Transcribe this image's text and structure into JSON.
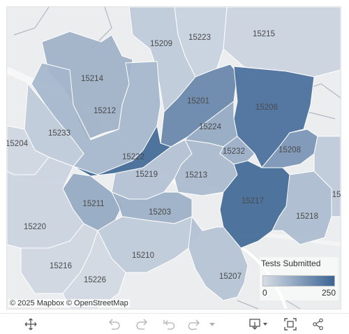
{
  "map": {
    "zip_codes": [
      {
        "zip": "15215",
        "tests": 20
      },
      {
        "zip": "15223",
        "tests": 25
      },
      {
        "zip": "15209",
        "tests": 40
      },
      {
        "zip": "15214",
        "tests": 90
      },
      {
        "zip": "15212",
        "tests": 80
      },
      {
        "zip": "15233",
        "tests": 40
      },
      {
        "zip": "15204",
        "tests": 15
      },
      {
        "zip": "15201",
        "tests": 180
      },
      {
        "zip": "15206",
        "tests": 230
      },
      {
        "zip": "15224",
        "tests": 110
      },
      {
        "zip": "15232",
        "tests": 100
      },
      {
        "zip": "15208",
        "tests": 150
      },
      {
        "zip": "15222",
        "tests": 240
      },
      {
        "zip": "15219",
        "tests": 60
      },
      {
        "zip": "15213",
        "tests": 75
      },
      {
        "zip": "15211",
        "tests": 110
      },
      {
        "zip": "15203",
        "tests": 95
      },
      {
        "zip": "15217",
        "tests": 240
      },
      {
        "zip": "15218",
        "tests": 70
      },
      {
        "zip": "15220",
        "tests": 20
      },
      {
        "zip": "15210",
        "tests": 40
      },
      {
        "zip": "15216",
        "tests": 15
      },
      {
        "zip": "15226",
        "tests": 10
      },
      {
        "zip": "15207",
        "tests": 55
      },
      {
        "zip": "15",
        "tests": 40
      }
    ],
    "attribution": "© 2025 Mapbox  © OpenStreetMap",
    "color_low": "#d7dde6",
    "color_high": "#3a6494"
  },
  "legend": {
    "title": "Tests Submitted",
    "min": "0",
    "max": "250"
  },
  "toolbar": {
    "icons": [
      "move-icon",
      "undo-icon",
      "redo-icon",
      "revert-icon",
      "refresh-icon",
      "dropdown-icon",
      "download-icon",
      "fullscreen-icon",
      "share-icon"
    ]
  }
}
